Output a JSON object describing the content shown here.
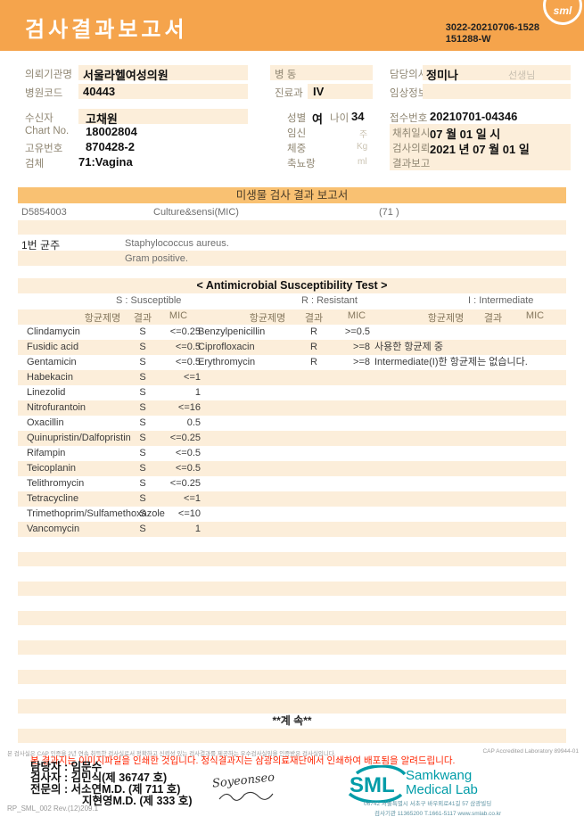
{
  "colors": {
    "header_orange": "#F5A44C",
    "band_orange": "#F9C172",
    "stripe_peach": "#FCEEDA",
    "label_brown": "#8F8672",
    "red_notice": "#FF2400",
    "teal_logo": "#009CA8"
  },
  "header": {
    "title": "검사결과보고서",
    "report_no_line1": "3022-20210706-1528",
    "report_no_line2": "151288-W",
    "logo_text": "sml"
  },
  "info": {
    "referrer_label": "의뢰기관명",
    "referrer_value": "서울라헬여성의원",
    "hospital_code_label": "병원코드",
    "hospital_code_value": "40443",
    "ward_label": "병  동",
    "ward_value": "",
    "dept_label": "진료과",
    "dept_value": "IV",
    "doctor_label": "담당의사",
    "doctor_value": "정미나",
    "doctor_suffix": "선생님",
    "clinical_label": "임상정보",
    "clinical_value": "",
    "recipient_label": "수신자",
    "recipient_value": "고채원",
    "chart_label": "Chart No.",
    "chart_value": "18002804",
    "uid_label": "고유번호",
    "uid_value": "870428-2",
    "specimen_label": "검체",
    "specimen_value": "71:Vagina",
    "sex_label": "성별",
    "sex_value": "여",
    "age_label": "나이",
    "age_value": "34",
    "pregnancy_label": "임신",
    "pregnancy_unit": "주",
    "weight_label": "체중",
    "weight_unit": "Kg",
    "urine_label": "축뇨랑",
    "urine_unit": "ml",
    "receipt_label": "접수번호",
    "receipt_value": "20210701-04346",
    "collected_label": "채취일시",
    "collected_value": "07 월 01 일 시",
    "requested_label": "검사의뢰",
    "requested_value": "2021 년 07 월 01 일",
    "reported_label": "결과보고",
    "reported_value": ""
  },
  "micro": {
    "section_title": "미생물 검사 결과 보고서",
    "test_code": "D5854003",
    "test_name": "Culture&sensi(MIC)",
    "specimen_code": "(71 )",
    "strain_label": "1번 균주",
    "strain_name": "Staphylococcus aureus.",
    "gram_result": "Gram positive."
  },
  "ast": {
    "title": "< Antimicrobial Susceptibility Test >",
    "legend_s": "S : Susceptible",
    "legend_r": "R : Resistant",
    "legend_i": "I : Intermediate",
    "col_headers": [
      "항균제명",
      "결과",
      "MIC",
      "항균제명",
      "결과",
      "MIC",
      "항균제명",
      "결과",
      "MIC"
    ],
    "rows": [
      {
        "a_name": "Clindamycin",
        "a_res": "S",
        "a_mic": "<=0.25",
        "b_name": "Benzylpenicillin",
        "b_res": "R",
        "b_mic": ">=0.5",
        "note": ""
      },
      {
        "a_name": "Fusidic acid",
        "a_res": "S",
        "a_mic": "<=0.5",
        "b_name": "Ciprofloxacin",
        "b_res": "R",
        "b_mic": ">=8",
        "note": "사용한 항균제 중"
      },
      {
        "a_name": "Gentamicin",
        "a_res": "S",
        "a_mic": "<=0.5",
        "b_name": "Erythromycin",
        "b_res": "R",
        "b_mic": ">=8",
        "note": "Intermediate(I)한 항균제는 없습니다."
      },
      {
        "a_name": "Habekacin",
        "a_res": "S",
        "a_mic": "<=1",
        "b_name": "",
        "b_res": "",
        "b_mic": "",
        "note": ""
      },
      {
        "a_name": "Linezolid",
        "a_res": "S",
        "a_mic": "1",
        "b_name": "",
        "b_res": "",
        "b_mic": "",
        "note": ""
      },
      {
        "a_name": "Nitrofurantoin",
        "a_res": "S",
        "a_mic": "<=16",
        "b_name": "",
        "b_res": "",
        "b_mic": "",
        "note": ""
      },
      {
        "a_name": "Oxacillin",
        "a_res": "S",
        "a_mic": "0.5",
        "b_name": "",
        "b_res": "",
        "b_mic": "",
        "note": ""
      },
      {
        "a_name": "Quinupristin/Dalfopristin",
        "a_res": "S",
        "a_mic": "<=0.25",
        "b_name": "",
        "b_res": "",
        "b_mic": "",
        "note": ""
      },
      {
        "a_name": "Rifampin",
        "a_res": "S",
        "a_mic": "<=0.5",
        "b_name": "",
        "b_res": "",
        "b_mic": "",
        "note": ""
      },
      {
        "a_name": "Teicoplanin",
        "a_res": "S",
        "a_mic": "<=0.5",
        "b_name": "",
        "b_res": "",
        "b_mic": "",
        "note": ""
      },
      {
        "a_name": "Telithromycin",
        "a_res": "S",
        "a_mic": "<=0.25",
        "b_name": "",
        "b_res": "",
        "b_mic": "",
        "note": ""
      },
      {
        "a_name": "Tetracycline",
        "a_res": "S",
        "a_mic": "<=1",
        "b_name": "",
        "b_res": "",
        "b_mic": "",
        "note": ""
      },
      {
        "a_name": "Trimethoprim/Sulfamethoxazole",
        "a_res": "S",
        "a_mic": "<=10",
        "b_name": "",
        "b_res": "",
        "b_mic": "",
        "note": ""
      },
      {
        "a_name": "Vancomycin",
        "a_res": "S",
        "a_mic": "1",
        "b_name": "",
        "b_res": "",
        "b_mic": "",
        "note": ""
      }
    ]
  },
  "continued": "**계  속**",
  "footer": {
    "cap_note": "본 검사실은 CAP 인증을 2년 연속 취득한 검사실로서 정확하고 신뢰성 있는 검사결과를 제공하는 우수검사실임을 인증받은 검사실입니다.",
    "cap_right": "CAP Accredited Laboratory 89944-01",
    "red_notice": "본 결과지는 이미지파일을 인쇄한 것입니다. 정식결과지는 삼광의료재단에서 인쇄하여 배포됨을 알려드립니다.",
    "manager_line": "담당자 : 임문수",
    "examiner_line": "검사자 : 김민식(제 36747 호)",
    "specialist_line1": "전문의 : 서소연M.D. (제 711 호)",
    "specialist_line2": "지현영M.D. (제 333 호)",
    "signature_text": "Soyeonseo",
    "doc_code": "RP_SML_002 Rev.(12)209.1",
    "logo": {
      "sml": "SML",
      "name_line1": "Samkwang",
      "name_line2": "Medical Lab",
      "addr1": "06742 서울특별시 서초구 바우뫼로41길 57 삼광빌딩",
      "addr2": "검사기관 11365200 T.1661-5117 www.smlab.co.kr"
    }
  }
}
